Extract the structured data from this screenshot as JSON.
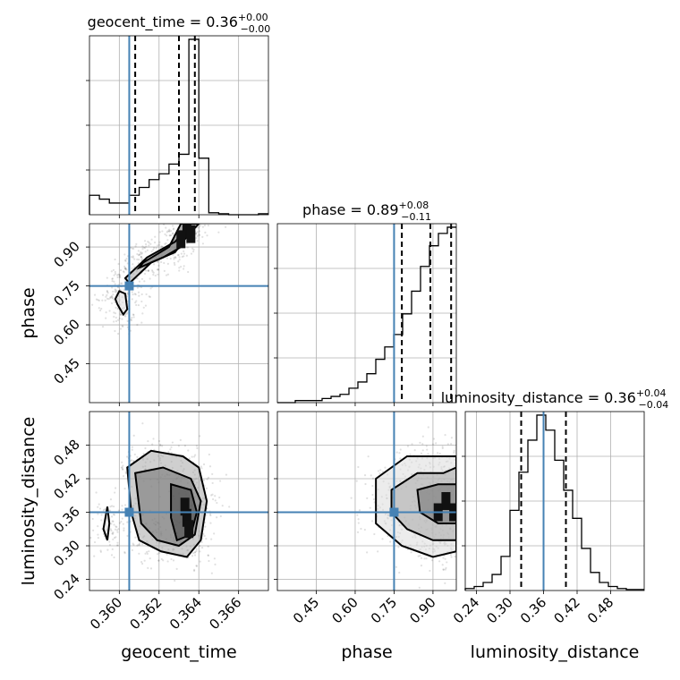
{
  "chart_data": {
    "type": "corner",
    "parameters": [
      "geocent_time",
      "phase",
      "luminosity_distance"
    ],
    "truths": {
      "geocent_time": 0.3605,
      "phase": 0.75,
      "luminosity_distance": 0.36
    },
    "titles": [
      {
        "param": "geocent_time",
        "base": "geocent_time = 0.36",
        "sup": "+0.00",
        "sub": "−0.00"
      },
      {
        "param": "phase",
        "base": "phase = 0.89",
        "sup": "+0.08",
        "sub": "−0.11"
      },
      {
        "param": "luminosity_distance",
        "base": "luminosity_distance = 0.36",
        "sup": "+0.04",
        "sub": "−0.04"
      }
    ],
    "axes": {
      "geocent_time": {
        "label": "geocent_time",
        "range": [
          0.3585,
          0.3675
        ],
        "ticks": [
          0.36,
          0.362,
          0.364,
          0.366
        ],
        "tick_labels": [
          "0.360",
          "0.362",
          "0.364",
          "0.366"
        ]
      },
      "phase": {
        "label": "phase",
        "range": [
          0.3,
          0.99
        ],
        "ticks": [
          0.45,
          0.6,
          0.75,
          0.9
        ],
        "tick_labels": [
          "0.45",
          "0.60",
          "0.75",
          "0.90"
        ]
      },
      "luminosity_distance": {
        "label": "luminosity_distance",
        "range": [
          0.22,
          0.54
        ],
        "ticks": [
          0.24,
          0.3,
          0.36,
          0.42,
          0.48
        ],
        "tick_labels": [
          "0.24",
          "0.30",
          "0.36",
          "0.42",
          "0.48"
        ]
      }
    },
    "histograms": {
      "geocent_time": {
        "bin_edges": [
          0.3585,
          0.359,
          0.3595,
          0.36,
          0.3605,
          0.361,
          0.3615,
          0.362,
          0.3625,
          0.363,
          0.3635,
          0.364,
          0.3645,
          0.365,
          0.3655,
          0.366,
          0.3665,
          0.367,
          0.3675
        ],
        "counts": [
          20,
          16,
          12,
          12,
          20,
          28,
          36,
          42,
          52,
          62,
          180,
          58,
          2,
          1,
          0,
          0,
          0,
          1
        ],
        "quantiles": [
          0.3608,
          0.363,
          0.3638
        ]
      },
      "phase": {
        "bin_edges": [
          0.3,
          0.3345,
          0.369,
          0.4035,
          0.438,
          0.4725,
          0.507,
          0.5415,
          0.576,
          0.6105,
          0.645,
          0.6795,
          0.714,
          0.7485,
          0.783,
          0.8175,
          0.852,
          0.8865,
          0.921,
          0.9555,
          0.99
        ],
        "counts": [
          0,
          0,
          2,
          2,
          2,
          4,
          6,
          8,
          14,
          20,
          28,
          42,
          54,
          66,
          86,
          108,
          132,
          152,
          164,
          170
        ],
        "quantiles": [
          0.78,
          0.89,
          0.97
        ]
      },
      "luminosity_distance": {
        "bin_edges": [
          0.22,
          0.236,
          0.252,
          0.268,
          0.284,
          0.3,
          0.316,
          0.332,
          0.348,
          0.364,
          0.38,
          0.396,
          0.412,
          0.428,
          0.444,
          0.46,
          0.476,
          0.492,
          0.508,
          0.524,
          0.54
        ],
        "counts": [
          2,
          4,
          8,
          16,
          34,
          80,
          118,
          150,
          175,
          160,
          130,
          100,
          72,
          42,
          18,
          8,
          4,
          2,
          1,
          1
        ],
        "quantiles": [
          0.32,
          0.36,
          0.4
        ]
      }
    },
    "pairs": [
      {
        "x": "geocent_time",
        "y": "phase",
        "contours": [
          [
            [
              0.3599,
              0.68
            ],
            [
              0.3602,
              0.64
            ],
            [
              0.3604,
              0.66
            ],
            [
              0.3603,
              0.72
            ],
            [
              0.36,
              0.73
            ],
            [
              0.3598,
              0.7
            ]
          ],
          [
            [
              0.3605,
              0.76
            ],
            [
              0.3616,
              0.84
            ],
            [
              0.3628,
              0.88
            ],
            [
              0.3634,
              0.94
            ],
            [
              0.364,
              0.99
            ],
            [
              0.3636,
              0.99
            ],
            [
              0.3628,
              0.92
            ],
            [
              0.3614,
              0.86
            ],
            [
              0.3603,
              0.78
            ]
          ],
          [
            [
              0.361,
              0.82
            ],
            [
              0.3622,
              0.86
            ],
            [
              0.3631,
              0.9
            ],
            [
              0.3635,
              0.99
            ],
            [
              0.3631,
              0.99
            ],
            [
              0.3625,
              0.9
            ],
            [
              0.3612,
              0.84
            ]
          ]
        ],
        "dense": [
          [
            0.3634,
            0.97
          ],
          [
            0.3636,
            0.95
          ],
          [
            0.3631,
            0.93
          ]
        ]
      },
      {
        "x": "geocent_time",
        "y": "luminosity_distance",
        "contours": [
          [
            [
              0.3592,
              0.33
            ],
            [
              0.3594,
              0.37
            ],
            [
              0.3595,
              0.34
            ],
            [
              0.3594,
              0.31
            ]
          ],
          [
            [
              0.3604,
              0.44
            ],
            [
              0.3616,
              0.47
            ],
            [
              0.3632,
              0.46
            ],
            [
              0.364,
              0.44
            ],
            [
              0.3644,
              0.38
            ],
            [
              0.3641,
              0.31
            ],
            [
              0.3634,
              0.28
            ],
            [
              0.3621,
              0.29
            ],
            [
              0.361,
              0.31
            ],
            [
              0.3606,
              0.36
            ]
          ],
          [
            [
              0.3608,
              0.43
            ],
            [
              0.3622,
              0.44
            ],
            [
              0.3636,
              0.42
            ],
            [
              0.3641,
              0.38
            ],
            [
              0.3638,
              0.32
            ],
            [
              0.363,
              0.3
            ],
            [
              0.3619,
              0.31
            ],
            [
              0.3611,
              0.34
            ]
          ],
          [
            [
              0.3626,
              0.41
            ],
            [
              0.3636,
              0.4
            ],
            [
              0.3639,
              0.36
            ],
            [
              0.3636,
              0.32
            ],
            [
              0.3629,
              0.31
            ],
            [
              0.3626,
              0.35
            ]
          ]
        ],
        "dense": [
          [
            0.3634,
            0.35
          ],
          [
            0.3635,
            0.33
          ],
          [
            0.3633,
            0.37
          ]
        ]
      },
      {
        "x": "phase",
        "y": "luminosity_distance",
        "contours": [
          [
            [
              0.68,
              0.42
            ],
            [
              0.8,
              0.46
            ],
            [
              0.92,
              0.46
            ],
            [
              0.99,
              0.46
            ],
            [
              0.99,
              0.29
            ],
            [
              0.9,
              0.28
            ],
            [
              0.78,
              0.3
            ],
            [
              0.68,
              0.34
            ]
          ],
          [
            [
              0.74,
              0.4
            ],
            [
              0.84,
              0.43
            ],
            [
              0.94,
              0.43
            ],
            [
              0.99,
              0.44
            ],
            [
              0.99,
              0.31
            ],
            [
              0.9,
              0.31
            ],
            [
              0.8,
              0.33
            ],
            [
              0.74,
              0.36
            ]
          ],
          [
            [
              0.84,
              0.4
            ],
            [
              0.92,
              0.41
            ],
            [
              0.99,
              0.41
            ],
            [
              0.99,
              0.34
            ],
            [
              0.92,
              0.34
            ],
            [
              0.85,
              0.36
            ]
          ]
        ],
        "dense": [
          [
            0.98,
            0.36
          ],
          [
            0.95,
            0.38
          ],
          [
            0.92,
            0.36
          ]
        ]
      }
    ]
  }
}
